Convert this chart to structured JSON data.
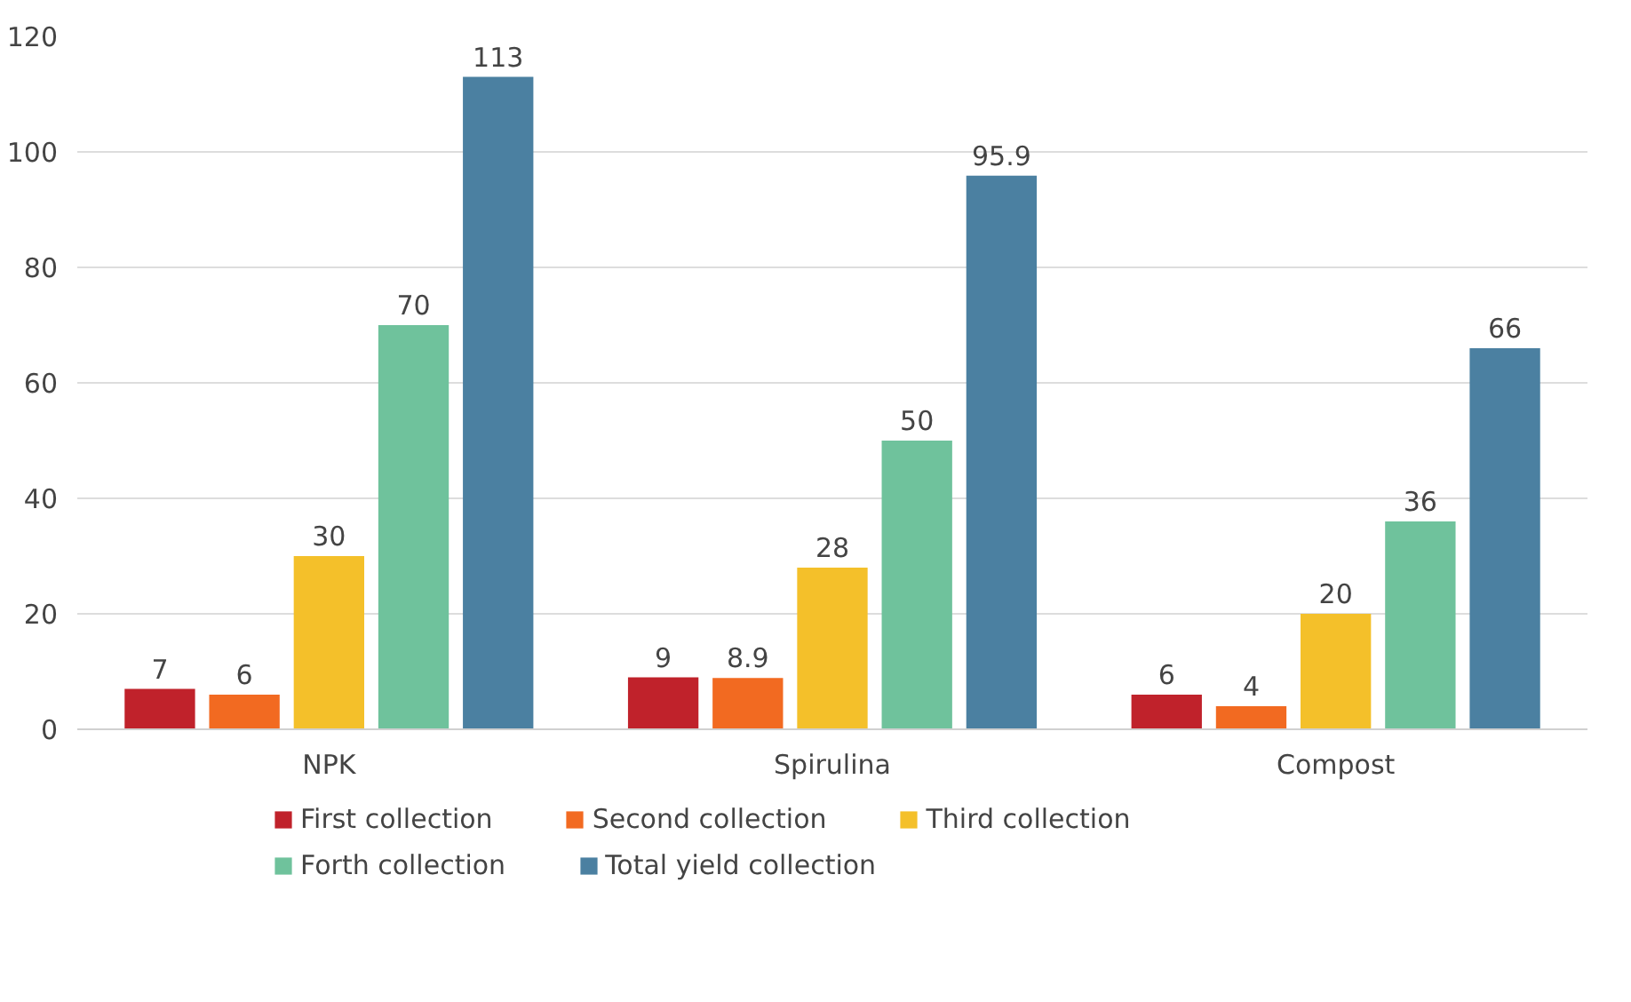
{
  "chart_data": {
    "type": "bar",
    "categories": [
      "NPK",
      "Spirulina",
      "Compost"
    ],
    "series": [
      {
        "name": "First collection",
        "color": "#c0222b",
        "values": [
          7,
          9,
          6
        ]
      },
      {
        "name": "Second collection",
        "color": "#f26a21",
        "values": [
          6,
          8.9,
          4
        ]
      },
      {
        "name": "Third collection",
        "color": "#f4c02a",
        "values": [
          30,
          28,
          20
        ]
      },
      {
        "name": "Forth collection",
        "color": "#6fc29c",
        "values": [
          70,
          50,
          36
        ]
      },
      {
        "name": "Total yield collection",
        "color": "#4b80a1",
        "values": [
          113,
          95.9,
          66
        ]
      }
    ],
    "ylim": [
      0,
      120
    ],
    "yticks": [
      0,
      20,
      40,
      60,
      80,
      100,
      120
    ],
    "grid": "y",
    "legend": "bottom",
    "data_labels": true
  }
}
